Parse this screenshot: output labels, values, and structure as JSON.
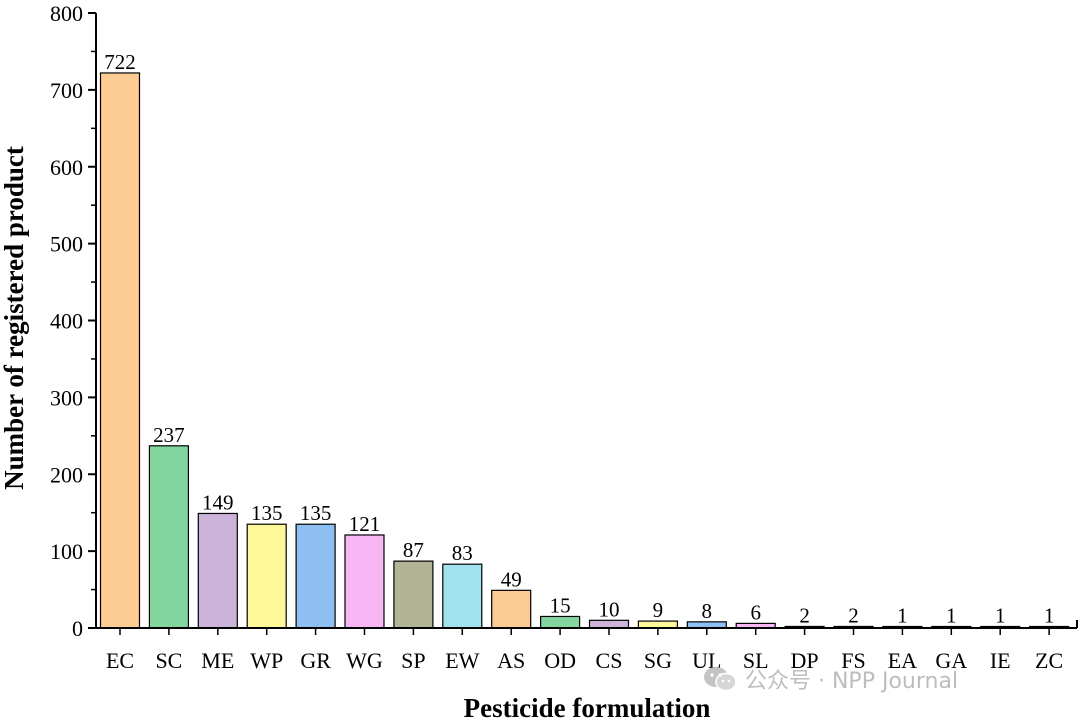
{
  "chart_data": {
    "type": "bar",
    "title": "",
    "xlabel": "Pesticide formulation",
    "ylabel": "Number of registered product",
    "ylim": [
      0,
      800
    ],
    "yticks": [
      0,
      100,
      200,
      300,
      400,
      500,
      600,
      700,
      800
    ],
    "grid": false,
    "categories": [
      "EC",
      "SC",
      "ME",
      "WP",
      "GR",
      "WG",
      "SP",
      "EW",
      "AS",
      "OD",
      "CS",
      "SG",
      "UL",
      "SL",
      "DP",
      "FS",
      "EA",
      "GA",
      "IE",
      "ZC"
    ],
    "values": [
      722,
      237,
      149,
      135,
      135,
      121,
      87,
      83,
      49,
      15,
      10,
      9,
      8,
      6,
      2,
      2,
      1,
      1,
      1,
      1
    ],
    "colors": [
      "#fdcc94",
      "#82d59d",
      "#ccb3da",
      "#fef89a",
      "#8ebff2",
      "#f8b6f5",
      "#b3b396",
      "#a2e2ee",
      "#fdcc94",
      "#82d59d",
      "#ccb3da",
      "#fef89a",
      "#8ebff2",
      "#f8b6f5",
      "#b3b396",
      "#a2e2ee",
      "#fdcc94",
      "#82d59d",
      "#ccb3da",
      "#fef89a"
    ]
  },
  "watermark": {
    "text": "公众号 · NPP Journal",
    "icon": "wechat-icon"
  }
}
